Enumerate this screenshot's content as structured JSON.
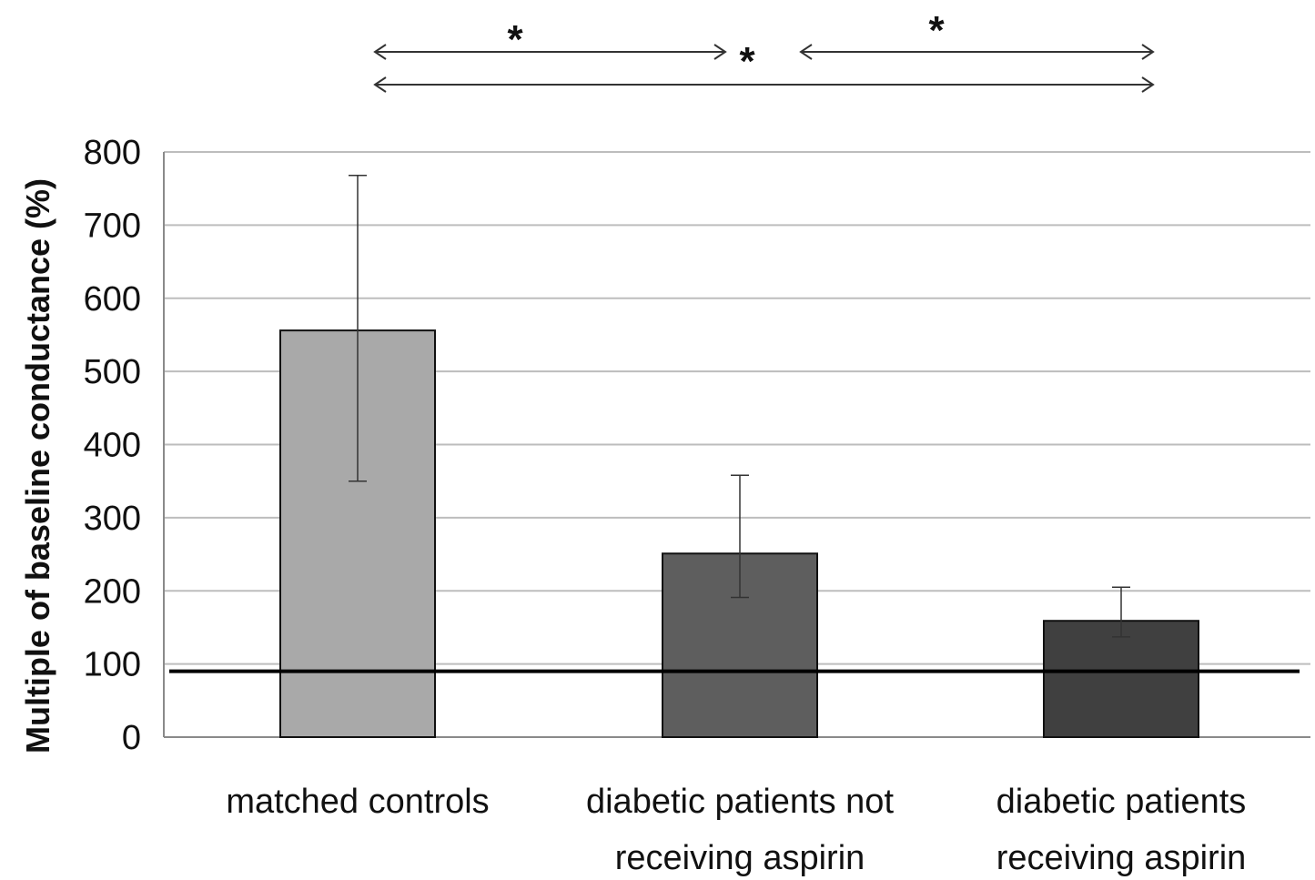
{
  "chart_data": {
    "type": "bar",
    "title": "",
    "xlabel": "",
    "ylabel": "Multiple of baseline conductance (%)",
    "ylim": [
      0,
      800
    ],
    "yticks": [
      0,
      100,
      200,
      300,
      400,
      500,
      600,
      700,
      800
    ],
    "grid": true,
    "categories": [
      [
        "matched controls"
      ],
      [
        "diabetic patients not",
        "receiving aspirin"
      ],
      [
        "diabetic patients",
        "receiving aspirin"
      ]
    ],
    "values": [
      556,
      251,
      159
    ],
    "error_high": [
      768,
      358,
      205
    ],
    "error_low": [
      350,
      191,
      137
    ],
    "bar_colors": [
      "#a9a9a9",
      "#5e5e5e",
      "#404040"
    ],
    "reference_line": 90,
    "significance": [
      {
        "from": 0,
        "to": 1,
        "label": "*"
      },
      {
        "from": 1,
        "to": 2,
        "label": "*"
      },
      {
        "from": 0,
        "to": 2,
        "label": "*"
      }
    ]
  }
}
